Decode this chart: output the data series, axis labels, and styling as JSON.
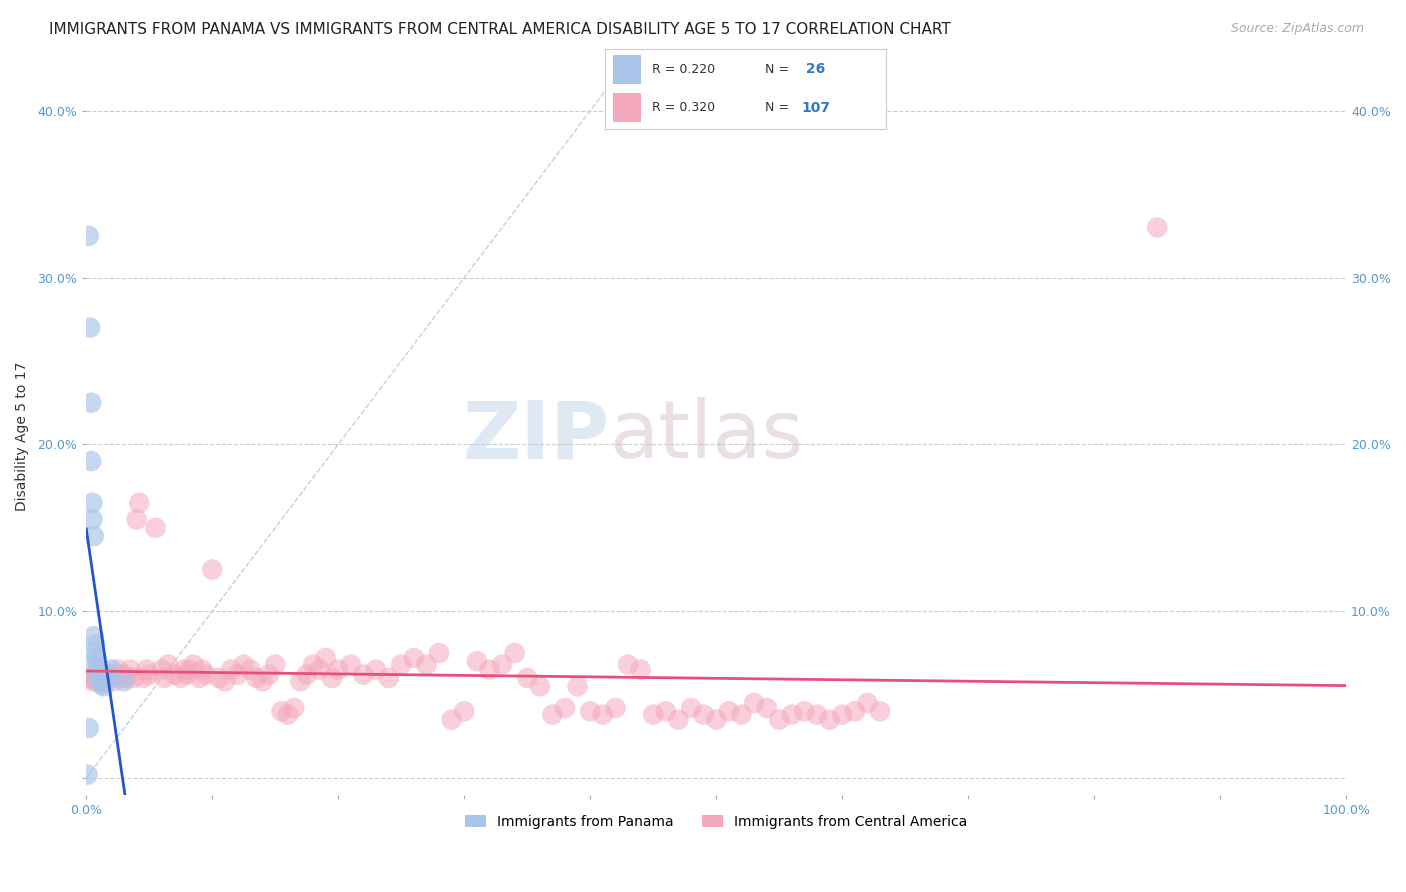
{
  "title": "IMMIGRANTS FROM PANAMA VS IMMIGRANTS FROM CENTRAL AMERICA DISABILITY AGE 5 TO 17 CORRELATION CHART",
  "source": "Source: ZipAtlas.com",
  "ylabel": "Disability Age 5 to 17",
  "xlim": [
    0.0,
    1.0
  ],
  "ylim": [
    -0.01,
    0.42
  ],
  "x_ticks": [
    0.0,
    0.1,
    0.2,
    0.3,
    0.4,
    0.5,
    0.6,
    0.7,
    0.8,
    0.9,
    1.0
  ],
  "y_ticks": [
    0.0,
    0.1,
    0.2,
    0.3,
    0.4
  ],
  "y_tick_labels": [
    "",
    "10.0%",
    "20.0%",
    "30.0%",
    "40.0%"
  ],
  "watermark_zip": "ZIP",
  "watermark_atlas": "atlas",
  "panama_R": 0.22,
  "panama_N": 26,
  "central_R": 0.32,
  "central_N": 107,
  "panama_color": "#a8c4e8",
  "central_color": "#f4a8bc",
  "panama_line_color": "#2255cc",
  "central_line_color": "#e8507a",
  "diagonal_color": "#b8cce4",
  "panama_scatter_x": [
    0.002,
    0.003,
    0.004,
    0.004,
    0.005,
    0.005,
    0.006,
    0.006,
    0.007,
    0.007,
    0.008,
    0.008,
    0.009,
    0.01,
    0.01,
    0.011,
    0.012,
    0.013,
    0.014,
    0.015,
    0.016,
    0.018,
    0.02,
    0.03,
    0.001,
    0.002
  ],
  "panama_scatter_y": [
    0.325,
    0.27,
    0.225,
    0.19,
    0.165,
    0.155,
    0.145,
    0.085,
    0.08,
    0.075,
    0.072,
    0.068,
    0.065,
    0.062,
    0.06,
    0.058,
    0.056,
    0.058,
    0.055,
    0.06,
    0.062,
    0.06,
    0.065,
    0.058,
    0.002,
    0.03
  ],
  "central_scatter_x": [
    0.003,
    0.005,
    0.006,
    0.007,
    0.008,
    0.009,
    0.01,
    0.011,
    0.012,
    0.013,
    0.014,
    0.015,
    0.016,
    0.017,
    0.018,
    0.019,
    0.02,
    0.022,
    0.025,
    0.028,
    0.03,
    0.032,
    0.035,
    0.038,
    0.04,
    0.042,
    0.045,
    0.048,
    0.05,
    0.055,
    0.06,
    0.062,
    0.065,
    0.07,
    0.075,
    0.078,
    0.08,
    0.082,
    0.085,
    0.09,
    0.092,
    0.095,
    0.1,
    0.105,
    0.11,
    0.115,
    0.12,
    0.125,
    0.13,
    0.135,
    0.14,
    0.145,
    0.15,
    0.155,
    0.16,
    0.165,
    0.17,
    0.175,
    0.18,
    0.185,
    0.19,
    0.195,
    0.2,
    0.21,
    0.22,
    0.23,
    0.24,
    0.25,
    0.26,
    0.27,
    0.28,
    0.29,
    0.3,
    0.31,
    0.32,
    0.33,
    0.34,
    0.35,
    0.36,
    0.37,
    0.38,
    0.39,
    0.4,
    0.41,
    0.42,
    0.43,
    0.44,
    0.45,
    0.46,
    0.47,
    0.48,
    0.49,
    0.5,
    0.51,
    0.52,
    0.53,
    0.54,
    0.55,
    0.56,
    0.57,
    0.58,
    0.59,
    0.6,
    0.61,
    0.62,
    0.63,
    0.85
  ],
  "central_scatter_y": [
    0.06,
    0.058,
    0.06,
    0.062,
    0.058,
    0.06,
    0.062,
    0.058,
    0.06,
    0.058,
    0.062,
    0.058,
    0.06,
    0.062,
    0.06,
    0.062,
    0.06,
    0.058,
    0.065,
    0.06,
    0.062,
    0.06,
    0.065,
    0.06,
    0.155,
    0.165,
    0.06,
    0.065,
    0.062,
    0.15,
    0.065,
    0.06,
    0.068,
    0.062,
    0.06,
    0.065,
    0.062,
    0.065,
    0.068,
    0.06,
    0.065,
    0.062,
    0.125,
    0.06,
    0.058,
    0.065,
    0.062,
    0.068,
    0.065,
    0.06,
    0.058,
    0.062,
    0.068,
    0.04,
    0.038,
    0.042,
    0.058,
    0.062,
    0.068,
    0.065,
    0.072,
    0.06,
    0.065,
    0.068,
    0.062,
    0.065,
    0.06,
    0.068,
    0.072,
    0.068,
    0.075,
    0.035,
    0.04,
    0.07,
    0.065,
    0.068,
    0.075,
    0.06,
    0.055,
    0.038,
    0.042,
    0.055,
    0.04,
    0.038,
    0.042,
    0.068,
    0.065,
    0.038,
    0.04,
    0.035,
    0.042,
    0.038,
    0.035,
    0.04,
    0.038,
    0.045,
    0.042,
    0.035,
    0.038,
    0.04,
    0.038,
    0.035,
    0.038,
    0.04,
    0.045,
    0.04,
    0.33
  ],
  "legend_label_panama": "Immigrants from Panama",
  "legend_label_central": "Immigrants from Central America",
  "background_color": "#ffffff",
  "grid_color": "#cccccc",
  "title_fontsize": 11,
  "axis_label_fontsize": 10,
  "tick_fontsize": 9,
  "source_fontsize": 9
}
